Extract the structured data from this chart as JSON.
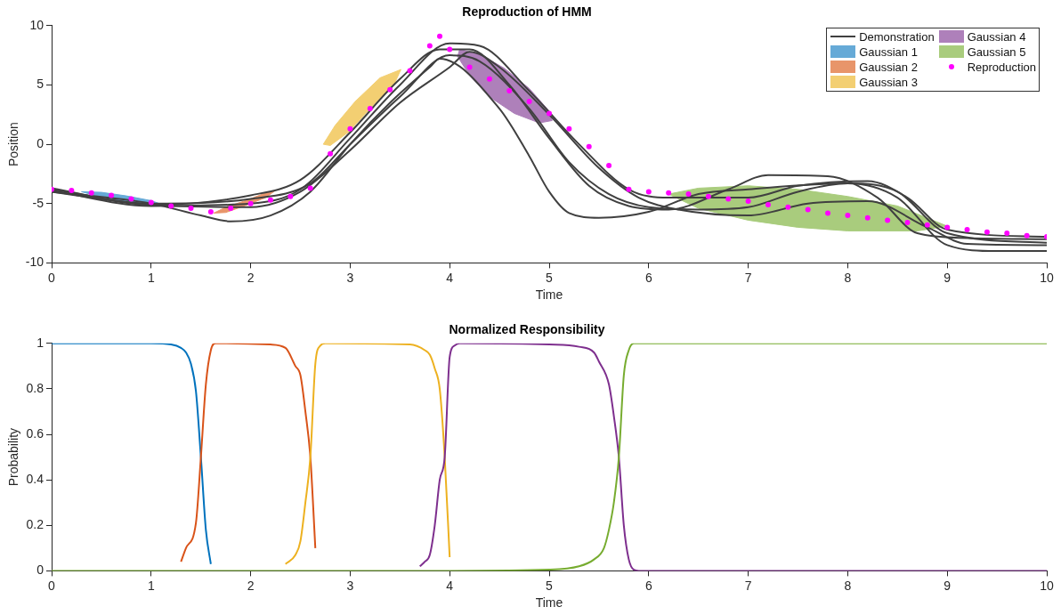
{
  "chart_data": [
    {
      "type": "line",
      "title": "Reproduction of HMM",
      "xlabel": "Time",
      "ylabel": "Position",
      "xlim": [
        0,
        10
      ],
      "xticks": [
        0,
        1,
        2,
        3,
        4,
        5,
        6,
        7,
        8,
        9,
        10
      ],
      "ylim": [
        -10,
        10
      ],
      "yticks": [
        -10,
        -5,
        0,
        5,
        10
      ],
      "grid": false,
      "legend": "top right",
      "series": [
        {
          "name": "Demonstration",
          "color": "#404040",
          "x": [
            0,
            1,
            1.5,
            1.8,
            2.2,
            2.6,
            3.0,
            3.4,
            3.8,
            3.9,
            4.5,
            4.8,
            5.0,
            5.2,
            5.5,
            6.0,
            6.5,
            7.0,
            8.0,
            8.5,
            9.0,
            9.5,
            10
          ],
          "values": [
            -4.0,
            -5.0,
            -6.0,
            -6.5,
            -6.0,
            -4.0,
            0.0,
            3.5,
            6.5,
            7.2,
            3.0,
            -1.0,
            -4.0,
            -5.8,
            -6.2,
            -5.7,
            -4.2,
            -3.8,
            -3.3,
            -4.5,
            -8.5,
            -9.0,
            -9.0
          ]
        },
        {
          "color": "#404040",
          "x": [
            0,
            1,
            2,
            2.5,
            3.0,
            3.5,
            3.9,
            4.2,
            4.6,
            5.0,
            5.4,
            5.8,
            6.2,
            6.8,
            7.2,
            7.8,
            8.3,
            8.7,
            9.2,
            10
          ],
          "values": [
            -3.7,
            -5.1,
            -4.3,
            -3.0,
            1.0,
            5.5,
            8.0,
            8.0,
            5.0,
            0.5,
            -3.5,
            -5.2,
            -5.5,
            -3.8,
            -2.6,
            -2.7,
            -4.5,
            -7.5,
            -7.9,
            -8.0
          ]
        },
        {
          "color": "#404040",
          "x": [
            0,
            1,
            2,
            2.5,
            3.0,
            3.5,
            4.0,
            4.3,
            4.8,
            5.3,
            5.8,
            6.2,
            7.0,
            7.5,
            8.2,
            8.6,
            9.0,
            10
          ],
          "values": [
            -3.9,
            -5.2,
            -5.0,
            -3.8,
            0.5,
            5.0,
            8.5,
            8.3,
            4.5,
            0.0,
            -3.8,
            -4.5,
            -4.5,
            -3.5,
            -3.1,
            -4.5,
            -7.2,
            -7.8
          ]
        },
        {
          "color": "#404040",
          "x": [
            0,
            1,
            2,
            2.6,
            3.0,
            3.5,
            4.0,
            4.3,
            4.8,
            5.2,
            5.6,
            6.0,
            6.5,
            7.0,
            7.5,
            8.0,
            8.5,
            9.0,
            10
          ],
          "values": [
            -3.8,
            -5.0,
            -4.6,
            -3.3,
            0.0,
            4.0,
            7.5,
            7.0,
            3.0,
            -1.5,
            -4.2,
            -5.3,
            -5.5,
            -5.3,
            -4.0,
            -3.3,
            -4.0,
            -7.5,
            -8.3
          ]
        },
        {
          "color": "#404040",
          "x": [
            0,
            1,
            2,
            2.5,
            3.0,
            3.5,
            4.0,
            4.2,
            4.5,
            5.0,
            5.5,
            5.9,
            6.3,
            7.0,
            7.6,
            8.2,
            8.8,
            9.2,
            10
          ],
          "values": [
            -4.0,
            -5.1,
            -5.3,
            -4.0,
            -0.5,
            3.5,
            6.5,
            7.8,
            6.5,
            2.5,
            -2.0,
            -4.5,
            -5.5,
            -6.0,
            -5.0,
            -4.8,
            -7.0,
            -8.4,
            -8.5
          ]
        },
        {
          "name": "Gaussian 1",
          "type": "area",
          "color": "#66aad7",
          "x": [
            0.3,
            0.5,
            0.75,
            1.0,
            1.15,
            1.0,
            0.75,
            0.5,
            0.3
          ],
          "values": [
            -4.0,
            -4.05,
            -4.35,
            -4.75,
            -5.2,
            -5.1,
            -4.8,
            -4.45,
            -4.0
          ]
        },
        {
          "name": "Gaussian 2",
          "type": "area",
          "color": "#e8956a",
          "x": [
            1.63,
            1.75,
            1.95,
            2.15,
            2.24,
            2.15,
            1.95,
            1.75,
            1.63
          ],
          "values": [
            -5.8,
            -5.3,
            -4.75,
            -4.1,
            -3.95,
            -4.5,
            -5.15,
            -5.75,
            -5.8
          ]
        },
        {
          "name": "Gaussian 3",
          "type": "area",
          "color": "#f3cf72",
          "x": [
            2.73,
            2.85,
            3.05,
            3.3,
            3.51,
            3.45,
            3.2,
            2.98,
            2.8,
            2.73
          ],
          "values": [
            0.0,
            1.6,
            3.6,
            5.6,
            6.3,
            5.2,
            3.0,
            1.0,
            -0.1,
            0.0
          ]
        },
        {
          "name": "Gaussian 4",
          "type": "area",
          "color": "#ae80ba",
          "x": [
            4.1,
            4.3,
            4.55,
            4.8,
            5.0,
            5.03,
            4.9,
            4.65,
            4.4,
            4.2,
            4.08,
            4.1
          ],
          "values": [
            8.0,
            7.6,
            6.4,
            4.7,
            2.8,
            2.0,
            1.8,
            2.6,
            4.0,
            5.8,
            7.4,
            8.0
          ]
        },
        {
          "name": "Gaussian 5",
          "type": "area",
          "color": "#a9cc7d",
          "x": [
            6.2,
            6.5,
            7.0,
            7.5,
            8.0,
            8.5,
            9.0,
            8.7,
            8.0,
            7.5,
            7.0,
            6.5,
            6.2
          ],
          "values": [
            -4.2,
            -3.7,
            -3.5,
            -3.8,
            -4.4,
            -5.2,
            -6.9,
            -7.3,
            -7.3,
            -7.0,
            -6.4,
            -5.4,
            -4.2
          ]
        },
        {
          "name": "Reproduction",
          "type": "scatter",
          "marker": "circle",
          "color": "#ff00ff",
          "x": [
            0,
            0.2,
            0.4,
            0.6,
            0.8,
            1.0,
            1.2,
            1.4,
            1.6,
            1.8,
            2.0,
            2.2,
            2.4,
            2.6,
            2.8,
            3.0,
            3.2,
            3.4,
            3.6,
            3.8,
            3.9,
            4.0,
            4.2,
            4.4,
            4.6,
            4.8,
            5.0,
            5.2,
            5.4,
            5.6,
            5.8,
            6.0,
            6.2,
            6.4,
            6.6,
            6.8,
            7.0,
            7.2,
            7.4,
            7.6,
            7.8,
            8.0,
            8.2,
            8.4,
            8.6,
            8.8,
            9.0,
            9.2,
            9.4,
            9.6,
            9.8,
            10
          ],
          "values": [
            -3.8,
            -3.9,
            -4.1,
            -4.3,
            -4.6,
            -4.9,
            -5.2,
            -5.4,
            -5.7,
            -5.4,
            -5.0,
            -4.7,
            -4.4,
            -3.7,
            -0.8,
            1.3,
            3.0,
            4.6,
            6.2,
            8.3,
            9.1,
            8.0,
            6.5,
            5.5,
            4.5,
            3.6,
            2.6,
            1.3,
            -0.2,
            -1.8,
            -3.8,
            -4.0,
            -4.1,
            -4.2,
            -4.4,
            -4.6,
            -4.8,
            -5.1,
            -5.3,
            -5.5,
            -5.8,
            -6.0,
            -6.2,
            -6.4,
            -6.6,
            -6.8,
            -7.0,
            -7.2,
            -7.4,
            -7.5,
            -7.7,
            -7.8
          ]
        }
      ]
    },
    {
      "type": "line",
      "title": "Normalized Responsibility",
      "xlabel": "Time",
      "ylabel": "Probability",
      "xlim": [
        0,
        10
      ],
      "xticks": [
        0,
        1,
        2,
        3,
        4,
        5,
        6,
        7,
        8,
        9,
        10
      ],
      "ylim": [
        0,
        1
      ],
      "yticks": [
        0,
        0.2,
        0.4,
        0.6,
        0.8,
        1
      ],
      "grid": false,
      "series": [
        {
          "color": "#0072bd",
          "x": [
            0,
            1.0,
            1.2,
            1.3,
            1.35,
            1.4,
            1.45,
            1.5,
            1.55,
            1.6
          ],
          "values": [
            1,
            1,
            0.995,
            0.98,
            0.96,
            0.91,
            0.79,
            0.5,
            0.18,
            0.03
          ]
        },
        {
          "color": "#d95319",
          "x": [
            1.3,
            1.35,
            1.45,
            1.5,
            1.55,
            1.6,
            1.65,
            2.2,
            2.35,
            2.45,
            2.5,
            2.55,
            2.6,
            2.65
          ],
          "values": [
            0.04,
            0.1,
            0.21,
            0.5,
            0.82,
            0.97,
            1.0,
            0.995,
            0.98,
            0.9,
            0.86,
            0.7,
            0.5,
            0.1
          ]
        },
        {
          "color": "#edb120",
          "x": [
            2.35,
            2.45,
            2.5,
            2.55,
            2.6,
            2.65,
            2.7,
            2.75,
            3.6,
            3.75,
            3.8,
            3.85,
            3.9,
            3.95,
            4.0
          ],
          "values": [
            0.03,
            0.07,
            0.13,
            0.3,
            0.5,
            0.91,
            0.99,
            1.0,
            0.995,
            0.97,
            0.95,
            0.89,
            0.8,
            0.5,
            0.06
          ]
        },
        {
          "color": "#7e2f8e",
          "x": [
            3.7,
            3.75,
            3.8,
            3.85,
            3.9,
            3.95,
            4.0,
            4.05,
            4.1,
            5.0,
            5.3,
            5.45,
            5.5,
            5.6,
            5.65,
            5.7,
            5.75,
            5.8,
            5.85,
            5.9,
            10
          ],
          "values": [
            0.02,
            0.04,
            0.07,
            0.2,
            0.4,
            0.5,
            0.94,
            0.99,
            1.0,
            0.995,
            0.985,
            0.96,
            0.92,
            0.82,
            0.68,
            0.5,
            0.2,
            0.05,
            0.005,
            0,
            0
          ]
        },
        {
          "color": "#77ac30",
          "x": [
            0,
            4.0,
            5.0,
            5.3,
            5.45,
            5.55,
            5.6,
            5.65,
            5.7,
            5.75,
            5.8,
            5.85,
            10
          ],
          "values": [
            0,
            0,
            0.005,
            0.02,
            0.05,
            0.1,
            0.18,
            0.3,
            0.5,
            0.86,
            0.97,
            1.0,
            1.0
          ]
        }
      ]
    }
  ]
}
